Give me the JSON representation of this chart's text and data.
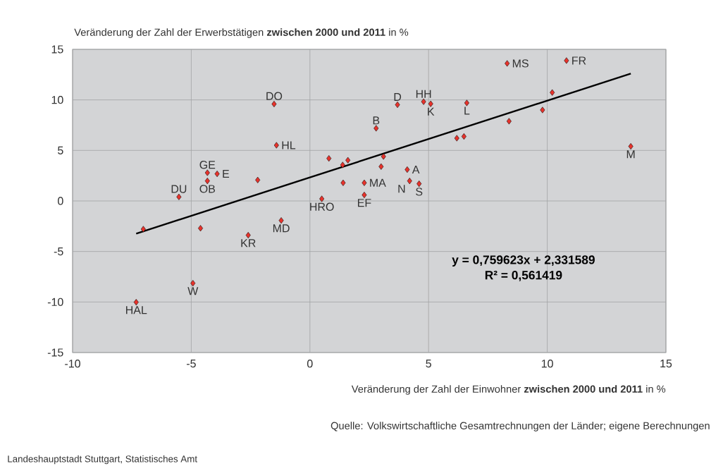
{
  "chart_data": {
    "type": "scatter",
    "xlabel": "Veränderung der Zahl der Einwohner **zwischen 2000 und 2011** in %",
    "ylabel": "Veränderung der Zahl der Erwerbstätigen **zwischen 2000 und 2011** in %",
    "xlim": [
      -10,
      15
    ],
    "ylim": [
      -15,
      15
    ],
    "xticks": [
      -10,
      -5,
      0,
      5,
      10,
      15
    ],
    "yticks": [
      -15,
      -10,
      -5,
      0,
      5,
      10,
      15
    ],
    "grid": true,
    "marker": "diamond",
    "series": [
      {
        "color": "#e8322b",
        "x": [
          -7.32,
          -7.02,
          -5.52,
          -4.93,
          -4.61,
          -4.32,
          -4.32,
          -3.91,
          -2.6,
          -2.2,
          -1.51,
          -1.41,
          -1.21,
          0.5,
          0.8,
          1.38,
          1.4,
          1.6,
          2.29,
          2.29,
          2.79,
          3.0,
          3.1,
          3.69,
          4.1,
          4.2,
          4.6,
          4.79,
          5.09,
          6.19,
          6.49,
          6.61,
          8.31,
          8.39,
          9.8,
          10.21,
          10.81,
          13.52
        ],
        "values": [
          -10.02,
          -2.79,
          0.4,
          -8.14,
          -2.7,
          2.79,
          1.98,
          2.68,
          -3.39,
          2.07,
          9.59,
          5.51,
          -1.93,
          0.21,
          4.21,
          3.56,
          1.79,
          4.03,
          1.79,
          0.59,
          7.19,
          3.4,
          4.4,
          9.52,
          3.1,
          1.98,
          1.7,
          9.82,
          9.61,
          6.21,
          6.38,
          9.7,
          13.61,
          7.89,
          9.0,
          10.73,
          13.89,
          5.4
        ],
        "value_labels": [
          "HAL",
          null,
          "DU",
          "W",
          null,
          "GE",
          "OB",
          "E",
          "KR",
          null,
          "DO",
          "HL",
          "MD",
          "HRO",
          null,
          null,
          null,
          null,
          "MA",
          "EF",
          "B",
          null,
          null,
          "D",
          "A",
          "N",
          "S",
          "HH",
          "K",
          null,
          null,
          "L",
          "MS",
          null,
          null,
          null,
          "FR",
          "M"
        ]
      },
      {
        "type": "line",
        "color": "#000000",
        "marker": "none",
        "x": [
          -7.32,
          13.52
        ],
        "values": [
          -3.23,
          12.6
        ]
      }
    ],
    "annotations": [
      "y = 0,759623x + 2,331589",
      "R² = 0,561419",
      "Quelle: Volkswirtschaftliche Gesamtrechnungen der Länder; eigene Berechnungen",
      "Landeshauptstadt Stuttgart, Statistisches Amt"
    ]
  }
}
